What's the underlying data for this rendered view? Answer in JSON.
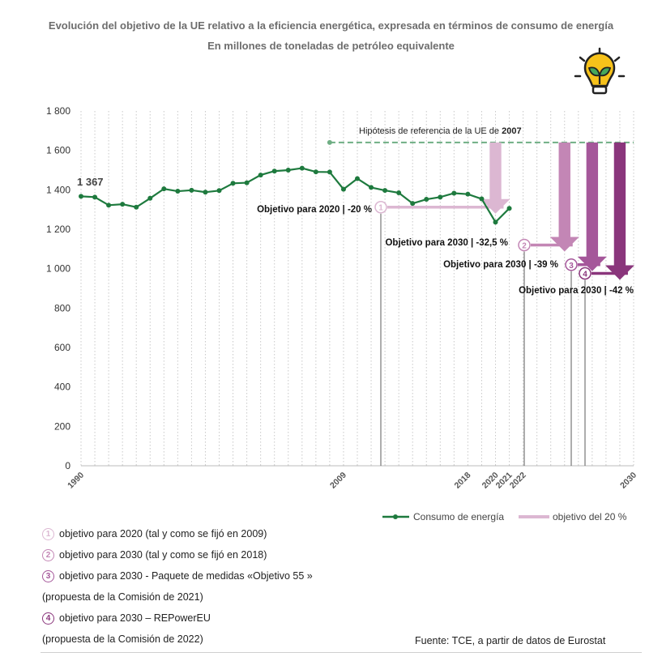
{
  "title_line1": "Evolución del objetivo de la UE relativo a la eficiencia energética, expresada en términos de consumo de energía",
  "title_line2": "En millones de toneladas de petróleo equivalente",
  "icon": "lightbulb-leaf-icon",
  "colors": {
    "series": "#1e7a3e",
    "ref_line": "#6fae84",
    "target1": "#dcb7d2",
    "target2": "#c386b5",
    "target3": "#a5579a",
    "target4": "#8a367c",
    "grid": "#c8c8c8"
  },
  "chart_data": {
    "type": "line",
    "title": "Evolución del objetivo de la UE relativo a la eficiencia energética, expresada en términos de consumo de energía",
    "subtitle": "En millones de toneladas de petróleo equivalente",
    "ylim": [
      0,
      1800
    ],
    "yticks": [
      0,
      200,
      400,
      600,
      800,
      1000,
      1200,
      1400,
      1600,
      1800
    ],
    "ytick_labels": [
      "0",
      "200",
      "400",
      "600",
      "800",
      "1 000",
      "1 200",
      "1 400",
      "1 600",
      "1 800"
    ],
    "xlim": [
      1990,
      2030
    ],
    "xtick_labels": [
      {
        "year": 1990,
        "label": "1990"
      },
      {
        "year": 2009,
        "label": "2009"
      },
      {
        "year": 2018,
        "label": "2018"
      },
      {
        "year": 2020,
        "label": "2020"
      },
      {
        "year": 2021,
        "label": "2021"
      },
      {
        "year": 2022,
        "label": "2022"
      },
      {
        "year": 2030,
        "label": "2030"
      }
    ],
    "series": [
      {
        "name": "Consumo de energía",
        "x": [
          1990,
          1991,
          1992,
          1993,
          1994,
          1995,
          1996,
          1997,
          1998,
          1999,
          2000,
          2001,
          2002,
          2003,
          2004,
          2005,
          2006,
          2007,
          2008,
          2009,
          2010,
          2011,
          2012,
          2013,
          2014,
          2015,
          2016,
          2017,
          2018,
          2019,
          2020,
          2021
        ],
        "values": [
          1367,
          1363,
          1322,
          1327,
          1312,
          1357,
          1405,
          1393,
          1398,
          1388,
          1396,
          1433,
          1436,
          1475,
          1495,
          1500,
          1510,
          1491,
          1490,
          1403,
          1457,
          1412,
          1397,
          1385,
          1331,
          1352,
          1363,
          1383,
          1378,
          1354,
          1236,
          1306
        ]
      }
    ],
    "first_value_label": "1 367",
    "reference": {
      "label_prefix": "Hipótesis de referencia de la UE de ",
      "label_year": "2007",
      "start_year": 2008,
      "end_year": 2030,
      "value": 1640
    },
    "targets": [
      {
        "num": "1",
        "label": "Objetivo para 2020 | -20 %",
        "value": 1312,
        "set_year": 2009,
        "arrow_year": 2020
      },
      {
        "num": "2",
        "label": "Objetivo para 2030 | -32,5 %",
        "value": 1120,
        "set_year": 2018,
        "arrow_year": 2025
      },
      {
        "num": "3",
        "label": "Objetivo para 2030 | -39 %",
        "value": 1020,
        "set_year": 2021,
        "arrow_year": 2027
      },
      {
        "num": "4",
        "label": "Objetivo para 2030 | -42 %",
        "value": 976,
        "set_year": 2022,
        "arrow_year": 2029
      }
    ],
    "legend": [
      {
        "name": "Consumo de energía",
        "kind": "line-marker"
      },
      {
        "name": "objetivo del 20 %",
        "kind": "bar"
      }
    ]
  },
  "notes": [
    {
      "num": "1",
      "text": "objetivo para 2020 (tal y como se fijó en 2009)"
    },
    {
      "num": "2",
      "text": "objetivo para 2030 (tal y como se fijó en 2018)"
    },
    {
      "num": "3",
      "text": "objetivo para 2030 - Paquete de medidas «Objetivo 55 »"
    },
    {
      "num": "",
      "text": "(propuesta de la Comisión de 2021)"
    },
    {
      "num": "4",
      "text": "objetivo para 2030 – REPowerEU"
    },
    {
      "num": "",
      "text": "(propuesta de la Comisión de 2022)"
    }
  ],
  "source": "Fuente: TCE, a partir de datos de Eurostat"
}
